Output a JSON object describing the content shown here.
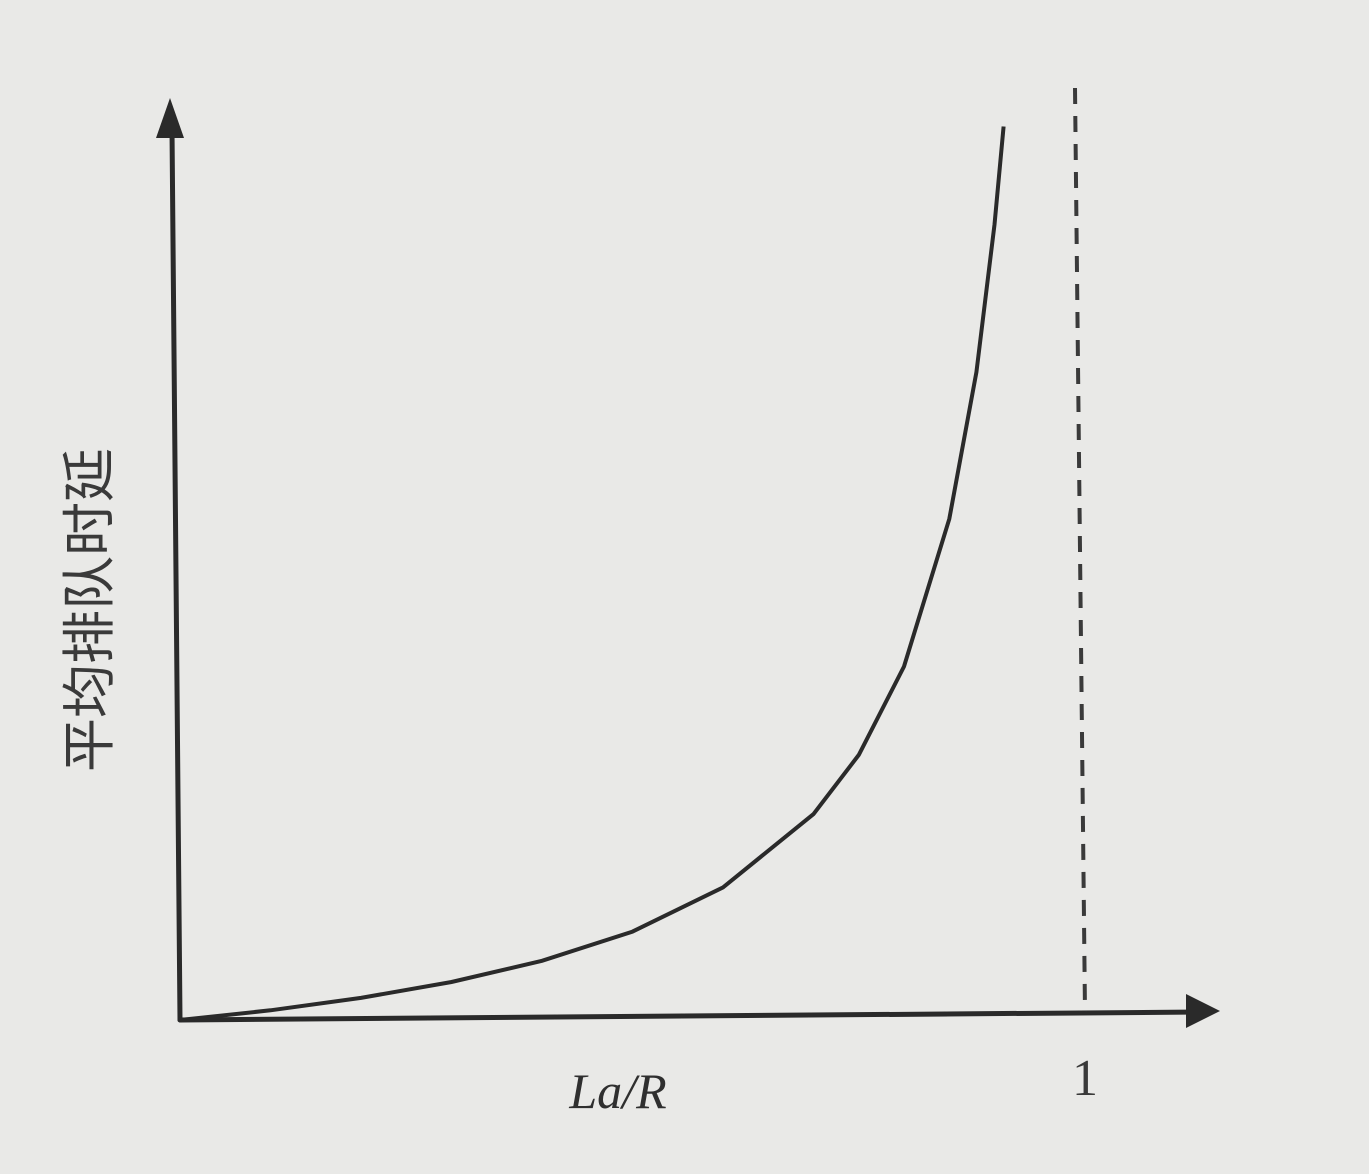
{
  "chart_data": {
    "type": "line",
    "title": "",
    "xlabel": "La/R",
    "ylabel": "平均排队时延",
    "xlim": [
      0,
      1.1
    ],
    "ylim": [
      0,
      10.5
    ],
    "x_ticks": [
      {
        "value": 1,
        "label": "1"
      }
    ],
    "grid": false,
    "legend": "none",
    "series": [
      {
        "x": [
          0,
          0.1,
          0.2,
          0.3,
          0.4,
          0.5,
          0.6,
          0.7,
          0.75,
          0.8,
          0.85,
          0.88,
          0.9,
          0.91
        ],
        "y": [
          0,
          0.11,
          0.25,
          0.43,
          0.67,
          1.0,
          1.5,
          2.33,
          3.0,
          4.0,
          5.67,
          7.33,
          9.0,
          10.11
        ]
      }
    ],
    "asymptote_x": 1
  }
}
